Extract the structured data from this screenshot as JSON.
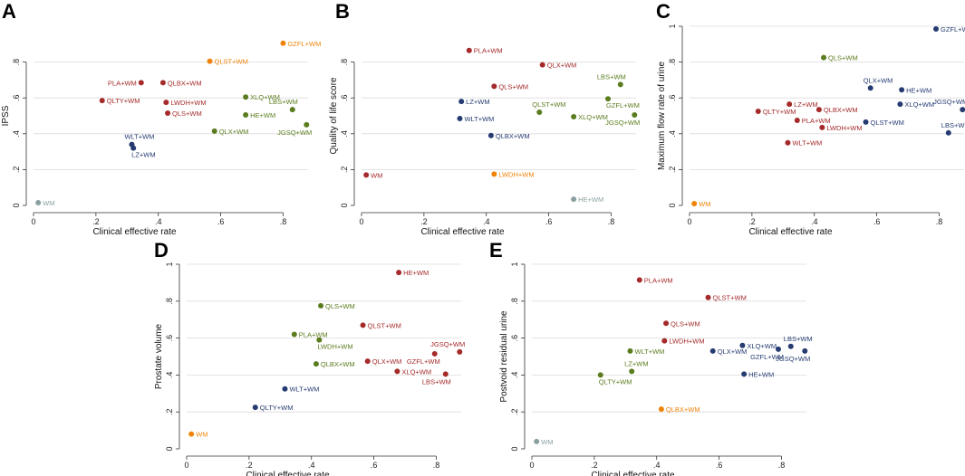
{
  "colors": {
    "red": "#a52a2a",
    "green": "#5b7c1e",
    "blue": "#263b72",
    "orange": "#f0840a",
    "gray": "#8aa0a0"
  },
  "chart_data": [
    {
      "panel": "A",
      "type": "scatter",
      "title": "",
      "xlabel": "Clinical effective rate",
      "ylabel": "IPSS",
      "xlim": [
        0,
        0.88
      ],
      "ylim": [
        0,
        1
      ],
      "xticks": [
        0,
        0.2,
        0.4,
        0.6,
        0.8
      ],
      "xtick_labels": [
        "0",
        ".2",
        ".4",
        ".6",
        ".8"
      ],
      "yticks": [
        0,
        0.2,
        0.4,
        0.6,
        0.8
      ],
      "ytick_labels": [
        "0",
        ".2",
        ".4",
        ".6",
        ".8"
      ],
      "grid": true,
      "points": [
        {
          "label": "GZFL+WM",
          "x": 0.8,
          "y": 0.905,
          "color": "orange",
          "pos": "right"
        },
        {
          "label": "QLST+WM",
          "x": 0.565,
          "y": 0.805,
          "color": "orange",
          "pos": "right"
        },
        {
          "label": "PLA+WM",
          "x": 0.345,
          "y": 0.685,
          "color": "red",
          "pos": "left"
        },
        {
          "label": "QLBX+WM",
          "x": 0.415,
          "y": 0.685,
          "color": "red",
          "pos": "right"
        },
        {
          "label": "QLTY+WM",
          "x": 0.22,
          "y": 0.585,
          "color": "red",
          "pos": "right"
        },
        {
          "label": "LWDH+WM",
          "x": 0.425,
          "y": 0.575,
          "color": "red",
          "pos": "right"
        },
        {
          "label": "QLS+WM",
          "x": 0.43,
          "y": 0.515,
          "color": "red",
          "pos": "right"
        },
        {
          "label": "XLQ+WM",
          "x": 0.68,
          "y": 0.605,
          "color": "green",
          "pos": "right"
        },
        {
          "label": "LBS+WM",
          "x": 0.83,
          "y": 0.535,
          "color": "green",
          "pos": "above-left"
        },
        {
          "label": "HE+WM",
          "x": 0.68,
          "y": 0.505,
          "color": "green",
          "pos": "right"
        },
        {
          "label": "JGSQ+WM",
          "x": 0.875,
          "y": 0.45,
          "color": "green",
          "pos": "below-left"
        },
        {
          "label": "QLX+WM",
          "x": 0.58,
          "y": 0.415,
          "color": "green",
          "pos": "right"
        },
        {
          "label": "WLT+WM",
          "x": 0.315,
          "y": 0.34,
          "color": "blue",
          "pos": "above-right"
        },
        {
          "label": "LZ+WM",
          "x": 0.32,
          "y": 0.32,
          "color": "blue",
          "pos": "below-right"
        },
        {
          "label": "WM",
          "x": 0.015,
          "y": 0.015,
          "color": "gray",
          "pos": "right"
        }
      ]
    },
    {
      "panel": "B",
      "type": "scatter",
      "title": "",
      "xlabel": "Clinical effective rate",
      "ylabel": "Quality of life score",
      "xlim": [
        0,
        0.88
      ],
      "ylim": [
        0,
        1
      ],
      "xticks": [
        0,
        0.2,
        0.4,
        0.6,
        0.8
      ],
      "xtick_labels": [
        "0",
        ".2",
        ".4",
        ".6",
        ".8"
      ],
      "yticks": [
        0,
        0.2,
        0.4,
        0.6,
        0.8
      ],
      "ytick_labels": [
        "0",
        ".2",
        ".4",
        ".6",
        ".8"
      ],
      "grid": true,
      "points": [
        {
          "label": "PLA+WM",
          "x": 0.345,
          "y": 0.865,
          "color": "red",
          "pos": "right"
        },
        {
          "label": "QLX+WM",
          "x": 0.58,
          "y": 0.785,
          "color": "red",
          "pos": "right"
        },
        {
          "label": "QLS+WM",
          "x": 0.425,
          "y": 0.665,
          "color": "red",
          "pos": "right"
        },
        {
          "label": "WM",
          "x": 0.015,
          "y": 0.17,
          "color": "red",
          "pos": "right"
        },
        {
          "label": "LBS+WM",
          "x": 0.83,
          "y": 0.675,
          "color": "green",
          "pos": "above-left"
        },
        {
          "label": "GZFL+WM",
          "x": 0.79,
          "y": 0.595,
          "color": "green",
          "pos": "below-right"
        },
        {
          "label": "QLST+WM",
          "x": 0.57,
          "y": 0.52,
          "color": "green",
          "pos": "above-right"
        },
        {
          "label": "XLQ+WM",
          "x": 0.68,
          "y": 0.495,
          "color": "green",
          "pos": "right"
        },
        {
          "label": "JGSQ+WM",
          "x": 0.875,
          "y": 0.505,
          "color": "green",
          "pos": "below-left"
        },
        {
          "label": "LZ+WM",
          "x": 0.32,
          "y": 0.58,
          "color": "blue",
          "pos": "right"
        },
        {
          "label": "WLT+WM",
          "x": 0.315,
          "y": 0.485,
          "color": "blue",
          "pos": "right"
        },
        {
          "label": "QLBX+WM",
          "x": 0.415,
          "y": 0.39,
          "color": "blue",
          "pos": "right"
        },
        {
          "label": "LWDH+WM",
          "x": 0.425,
          "y": 0.175,
          "color": "orange",
          "pos": "right"
        },
        {
          "label": "HE+WM",
          "x": 0.68,
          "y": 0.035,
          "color": "gray",
          "pos": "right"
        }
      ]
    },
    {
      "panel": "C",
      "type": "scatter",
      "title": "",
      "xlabel": "Clinical effective rate",
      "ylabel": "Maximum flow rate of urine",
      "xlim": [
        0,
        0.88
      ],
      "ylim": [
        0,
        1
      ],
      "xticks": [
        0,
        0.2,
        0.4,
        0.6,
        0.8
      ],
      "xtick_labels": [
        "0",
        ".2",
        ".4",
        ".6",
        ".8"
      ],
      "yticks": [
        0,
        0.2,
        0.4,
        0.6,
        0.8,
        1
      ],
      "ytick_labels": [
        "0",
        ".2",
        ".4",
        ".6",
        ".8",
        "1"
      ],
      "grid": true,
      "points": [
        {
          "label": "GZFL+WM",
          "x": 0.79,
          "y": 0.985,
          "color": "blue",
          "pos": "right"
        },
        {
          "label": "QLS+WM",
          "x": 0.43,
          "y": 0.825,
          "color": "green",
          "pos": "right"
        },
        {
          "label": "QLX+WM",
          "x": 0.58,
          "y": 0.655,
          "color": "blue",
          "pos": "above-right"
        },
        {
          "label": "HE+WM",
          "x": 0.68,
          "y": 0.645,
          "color": "blue",
          "pos": "right"
        },
        {
          "label": "XLQ+WM",
          "x": 0.675,
          "y": 0.565,
          "color": "blue",
          "pos": "right"
        },
        {
          "label": "JGSQ+WM",
          "x": 0.875,
          "y": 0.535,
          "color": "blue",
          "pos": "above-left"
        },
        {
          "label": "QLST+WM",
          "x": 0.565,
          "y": 0.465,
          "color": "blue",
          "pos": "right"
        },
        {
          "label": "LBS+WM",
          "x": 0.83,
          "y": 0.405,
          "color": "blue",
          "pos": "above-right"
        },
        {
          "label": "LZ+WM",
          "x": 0.32,
          "y": 0.565,
          "color": "red",
          "pos": "right"
        },
        {
          "label": "QLBX+WM",
          "x": 0.415,
          "y": 0.535,
          "color": "red",
          "pos": "right"
        },
        {
          "label": "QLTY+WM",
          "x": 0.22,
          "y": 0.525,
          "color": "red",
          "pos": "right"
        },
        {
          "label": "PLA+WM",
          "x": 0.345,
          "y": 0.475,
          "color": "red",
          "pos": "right"
        },
        {
          "label": "LWDH+WM",
          "x": 0.425,
          "y": 0.435,
          "color": "red",
          "pos": "right"
        },
        {
          "label": "WLT+WM",
          "x": 0.315,
          "y": 0.35,
          "color": "red",
          "pos": "right"
        },
        {
          "label": "WM",
          "x": 0.015,
          "y": 0.01,
          "color": "orange",
          "pos": "right"
        }
      ]
    },
    {
      "panel": "D",
      "type": "scatter",
      "title": "",
      "xlabel": "Clinical effective rate",
      "ylabel": "Prostate volume",
      "xlim": [
        0,
        0.88
      ],
      "ylim": [
        0,
        1
      ],
      "xticks": [
        0,
        0.2,
        0.4,
        0.6,
        0.8
      ],
      "xtick_labels": [
        "0",
        ".2",
        ".4",
        ".6",
        ".8"
      ],
      "yticks": [
        0,
        0.2,
        0.4,
        0.6,
        0.8,
        1
      ],
      "ytick_labels": [
        "0",
        ".2",
        ".4",
        ".6",
        ".8",
        "1"
      ],
      "grid": true,
      "points": [
        {
          "label": "HE+WM",
          "x": 0.68,
          "y": 0.955,
          "color": "red",
          "pos": "right"
        },
        {
          "label": "QLST+WM",
          "x": 0.565,
          "y": 0.67,
          "color": "red",
          "pos": "right"
        },
        {
          "label": "GZFL+WM",
          "x": 0.795,
          "y": 0.515,
          "color": "red",
          "pos": "below-left"
        },
        {
          "label": "JGSQ+WM",
          "x": 0.875,
          "y": 0.525,
          "color": "red",
          "pos": "above-left"
        },
        {
          "label": "QLX+WM",
          "x": 0.58,
          "y": 0.475,
          "color": "red",
          "pos": "right"
        },
        {
          "label": "XLQ+WM",
          "x": 0.675,
          "y": 0.42,
          "color": "red",
          "pos": "right"
        },
        {
          "label": "LBS+WM",
          "x": 0.83,
          "y": 0.405,
          "color": "red",
          "pos": "below-left"
        },
        {
          "label": "QLS+WM",
          "x": 0.43,
          "y": 0.775,
          "color": "green",
          "pos": "right"
        },
        {
          "label": "PLA+WM",
          "x": 0.345,
          "y": 0.62,
          "color": "green",
          "pos": "right"
        },
        {
          "label": "LWDH+WM",
          "x": 0.425,
          "y": 0.59,
          "color": "green",
          "pos": "below-right"
        },
        {
          "label": "QLBX+WM",
          "x": 0.415,
          "y": 0.46,
          "color": "green",
          "pos": "right"
        },
        {
          "label": "WLT+WM",
          "x": 0.315,
          "y": 0.325,
          "color": "blue",
          "pos": "right"
        },
        {
          "label": "QLTY+WM",
          "x": 0.22,
          "y": 0.225,
          "color": "blue",
          "pos": "right"
        },
        {
          "label": "WM",
          "x": 0.015,
          "y": 0.08,
          "color": "orange",
          "pos": "right"
        }
      ]
    },
    {
      "panel": "E",
      "type": "scatter",
      "title": "",
      "xlabel": "Clinical effective rate",
      "ylabel": "Postvoid residual urine",
      "xlim": [
        0,
        0.88
      ],
      "ylim": [
        0,
        1
      ],
      "xticks": [
        0,
        0.2,
        0.4,
        0.6,
        0.8
      ],
      "xtick_labels": [
        "0",
        ".2",
        ".4",
        ".6",
        ".8"
      ],
      "yticks": [
        0,
        0.2,
        0.4,
        0.6,
        0.8,
        1
      ],
      "ytick_labels": [
        "0",
        ".2",
        ".4",
        ".6",
        ".8",
        "1"
      ],
      "grid": true,
      "points": [
        {
          "label": "PLA+WM",
          "x": 0.345,
          "y": 0.915,
          "color": "red",
          "pos": "right"
        },
        {
          "label": "QLST+WM",
          "x": 0.565,
          "y": 0.82,
          "color": "red",
          "pos": "right"
        },
        {
          "label": "QLS+WM",
          "x": 0.43,
          "y": 0.68,
          "color": "red",
          "pos": "right"
        },
        {
          "label": "LWDH+WM",
          "x": 0.425,
          "y": 0.585,
          "color": "red",
          "pos": "right"
        },
        {
          "label": "WLT+WM",
          "x": 0.315,
          "y": 0.53,
          "color": "green",
          "pos": "right"
        },
        {
          "label": "LZ+WM",
          "x": 0.32,
          "y": 0.42,
          "color": "green",
          "pos": "above-right"
        },
        {
          "label": "QLTY+WM",
          "x": 0.22,
          "y": 0.4,
          "color": "green",
          "pos": "below-right"
        },
        {
          "label": "XLQ+WM",
          "x": 0.675,
          "y": 0.56,
          "color": "blue",
          "pos": "right"
        },
        {
          "label": "QLX+WM",
          "x": 0.58,
          "y": 0.53,
          "color": "blue",
          "pos": "right"
        },
        {
          "label": "GZFL+WM",
          "x": 0.79,
          "y": 0.54,
          "color": "blue",
          "pos": "below-left"
        },
        {
          "label": "LBS+WM",
          "x": 0.83,
          "y": 0.555,
          "color": "blue",
          "pos": "above-right"
        },
        {
          "label": "JGSQ+WM",
          "x": 0.875,
          "y": 0.53,
          "color": "blue",
          "pos": "below-left"
        },
        {
          "label": "HE+WM",
          "x": 0.68,
          "y": 0.405,
          "color": "blue",
          "pos": "right"
        },
        {
          "label": "QLBX+WM",
          "x": 0.415,
          "y": 0.215,
          "color": "orange",
          "pos": "right"
        },
        {
          "label": "WM",
          "x": 0.015,
          "y": 0.04,
          "color": "gray",
          "pos": "right"
        }
      ]
    }
  ]
}
